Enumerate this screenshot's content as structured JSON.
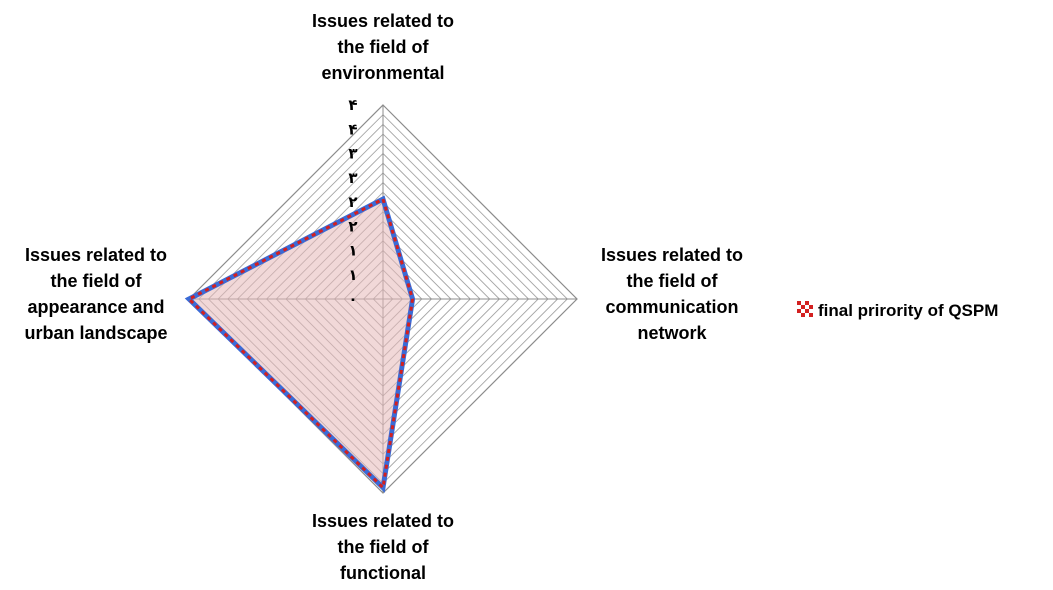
{
  "chart_data": {
    "type": "radar",
    "axes": [
      {
        "label": [
          "Issues related to",
          "the field of",
          "environmental"
        ]
      },
      {
        "label": [
          "Issues related to",
          "the field of",
          "communication",
          "network"
        ]
      },
      {
        "label": [
          "Issues related to",
          "the field of",
          "functional"
        ]
      },
      {
        "label": [
          "Issues related to",
          "the field of",
          "appearance and",
          "urban landscape"
        ]
      }
    ],
    "tick_labels": [
      "۰",
      "۱",
      "۱",
      "۲",
      "۲",
      "۳",
      "۳",
      "۴",
      "۴"
    ],
    "range": [
      0,
      4
    ],
    "series": [
      {
        "name": "final prirority of QSPM",
        "values": [
          2.06,
          0.61,
          3.89,
          4.0
        ],
        "line_color": "#3b6bd6",
        "dash_color": "#d32020",
        "fill_color": "#e6b8b8"
      }
    ],
    "legend_position": "right",
    "grid": true
  }
}
